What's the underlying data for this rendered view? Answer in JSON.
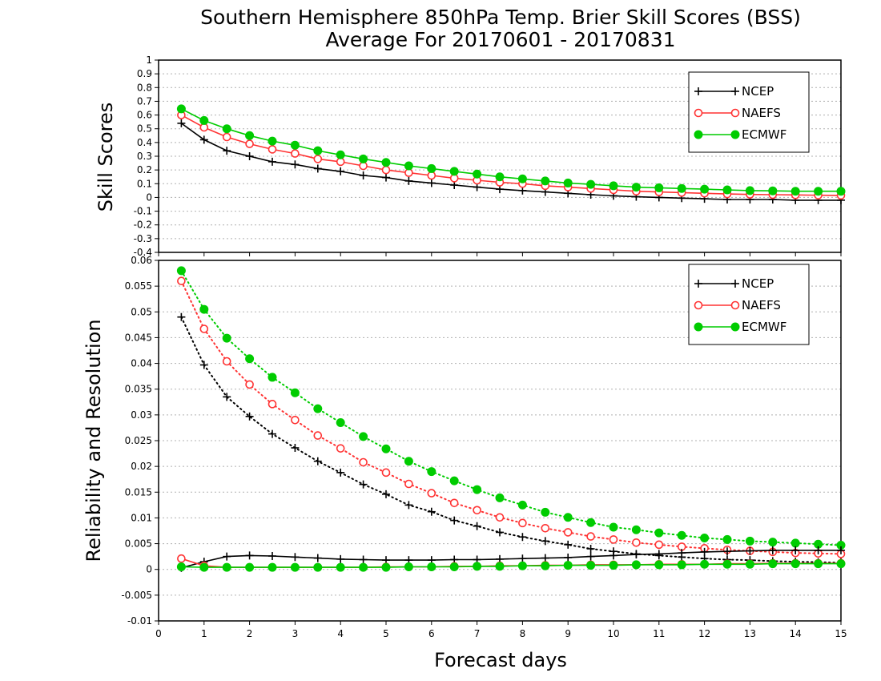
{
  "title_line1": "Southern Hemisphere 850hPa Temp. Brier Skill Scores (BSS)",
  "title_line2": "Average For 20170601 - 20170831",
  "xlabel": "Forecast days",
  "chart_data": [
    {
      "type": "line",
      "ylabel": "Skill Scores",
      "ylim": [
        -0.4,
        1
      ],
      "xlim": [
        0,
        15
      ],
      "yticks": [
        "-0.4",
        "-0.3",
        "-0.2",
        "-0.1",
        "0",
        "0.1",
        "0.2",
        "0.3",
        "0.4",
        "0.5",
        "0.6",
        "0.7",
        "0.8",
        "0.9",
        "1"
      ],
      "xticks": [
        "0",
        "1",
        "2",
        "3",
        "4",
        "5",
        "6",
        "7",
        "8",
        "9",
        "10",
        "11",
        "12",
        "13",
        "14",
        "15"
      ],
      "grid": true,
      "legend_position": "top-right",
      "x": [
        0.5,
        1,
        1.5,
        2,
        2.5,
        3,
        3.5,
        4,
        4.5,
        5,
        5.5,
        6,
        6.5,
        7,
        7.5,
        8,
        8.5,
        9,
        9.5,
        10,
        10.5,
        11,
        11.5,
        12,
        12.5,
        13,
        13.5,
        14,
        14.5,
        15
      ],
      "series": [
        {
          "name": "NCEP",
          "color": "#000000",
          "marker": "plus",
          "style": "solid",
          "values": [
            0.54,
            0.42,
            0.34,
            0.3,
            0.26,
            0.24,
            0.21,
            0.19,
            0.16,
            0.145,
            0.12,
            0.105,
            0.09,
            0.075,
            0.06,
            0.05,
            0.04,
            0.03,
            0.02,
            0.012,
            0.005,
            0.0,
            -0.005,
            -0.01,
            -0.015,
            -0.015,
            -0.015,
            -0.02,
            -0.02,
            -0.02
          ]
        },
        {
          "name": "NAEFS",
          "color": "#ff3333",
          "marker": "circle-open",
          "style": "solid",
          "values": [
            0.6,
            0.51,
            0.44,
            0.39,
            0.35,
            0.32,
            0.28,
            0.26,
            0.23,
            0.2,
            0.18,
            0.16,
            0.14,
            0.125,
            0.11,
            0.1,
            0.085,
            0.075,
            0.065,
            0.055,
            0.045,
            0.04,
            0.035,
            0.03,
            0.025,
            0.022,
            0.02,
            0.018,
            0.016,
            0.015
          ]
        },
        {
          "name": "ECMWF",
          "color": "#00cc00",
          "marker": "circle-filled",
          "style": "solid",
          "values": [
            0.645,
            0.56,
            0.5,
            0.45,
            0.41,
            0.38,
            0.34,
            0.31,
            0.28,
            0.255,
            0.23,
            0.21,
            0.19,
            0.17,
            0.15,
            0.135,
            0.12,
            0.105,
            0.095,
            0.085,
            0.075,
            0.07,
            0.065,
            0.06,
            0.055,
            0.05,
            0.048,
            0.045,
            0.045,
            0.045
          ]
        }
      ]
    },
    {
      "type": "line",
      "ylabel": "Reliability and Resolution",
      "ylim": [
        -0.01,
        0.06
      ],
      "xlim": [
        0,
        15
      ],
      "yticks": [
        "-0.01",
        "-0.005",
        "0",
        "0.005",
        "0.01",
        "0.015",
        "0.02",
        "0.025",
        "0.03",
        "0.035",
        "0.04",
        "0.045",
        "0.05",
        "0.055",
        "0.06"
      ],
      "xticks": [
        "0",
        "1",
        "2",
        "3",
        "4",
        "5",
        "6",
        "7",
        "8",
        "9",
        "10",
        "11",
        "12",
        "13",
        "14",
        "15"
      ],
      "grid": true,
      "legend_position": "top-right",
      "x": [
        0.5,
        1,
        1.5,
        2,
        2.5,
        3,
        3.5,
        4,
        4.5,
        5,
        5.5,
        6,
        6.5,
        7,
        7.5,
        8,
        8.5,
        9,
        9.5,
        10,
        10.5,
        11,
        11.5,
        12,
        12.5,
        13,
        13.5,
        14,
        14.5,
        15
      ],
      "series": [
        {
          "name": "NCEP",
          "color": "#000000",
          "marker": "plus",
          "style": "dotted",
          "kind": "resolution",
          "values": [
            0.049,
            0.0397,
            0.0335,
            0.0297,
            0.0263,
            0.0236,
            0.021,
            0.0188,
            0.0165,
            0.0146,
            0.0125,
            0.0112,
            0.0095,
            0.0084,
            0.0072,
            0.0063,
            0.0055,
            0.0048,
            0.004,
            0.0035,
            0.003,
            0.0027,
            0.0024,
            0.0021,
            0.0019,
            0.0018,
            0.0016,
            0.0015,
            0.0014,
            0.0013
          ]
        },
        {
          "name": "NAEFS",
          "color": "#ff3333",
          "marker": "circle-open",
          "style": "dotted",
          "kind": "resolution",
          "values": [
            0.056,
            0.0467,
            0.0404,
            0.0359,
            0.0321,
            0.029,
            0.026,
            0.0235,
            0.0208,
            0.0188,
            0.0166,
            0.0148,
            0.0129,
            0.0115,
            0.0101,
            0.009,
            0.008,
            0.0072,
            0.0064,
            0.0058,
            0.0052,
            0.0048,
            0.0044,
            0.0041,
            0.0038,
            0.0036,
            0.0034,
            0.0032,
            0.0031,
            0.003
          ]
        },
        {
          "name": "ECMWF",
          "color": "#00cc00",
          "marker": "circle-filled",
          "style": "dotted",
          "kind": "resolution",
          "values": [
            0.058,
            0.0505,
            0.0449,
            0.0409,
            0.0373,
            0.0343,
            0.0312,
            0.0285,
            0.0258,
            0.0234,
            0.021,
            0.019,
            0.0172,
            0.0155,
            0.0139,
            0.0125,
            0.0111,
            0.0101,
            0.0091,
            0.0082,
            0.0077,
            0.0071,
            0.0066,
            0.0061,
            0.0058,
            0.0055,
            0.0053,
            0.0051,
            0.0049,
            0.0047
          ]
        },
        {
          "name": "NCEP",
          "color": "#000000",
          "marker": "plus",
          "style": "solid",
          "kind": "reliability",
          "values": [
            0.0003,
            0.0015,
            0.0025,
            0.0027,
            0.0026,
            0.0024,
            0.0022,
            0.002,
            0.0019,
            0.0018,
            0.0018,
            0.0018,
            0.0019,
            0.0019,
            0.002,
            0.0021,
            0.0022,
            0.0023,
            0.0025,
            0.0027,
            0.0029,
            0.003,
            0.0032,
            0.0034,
            0.0035,
            0.0036,
            0.0037,
            0.0037,
            0.0037,
            0.0037
          ]
        },
        {
          "name": "NAEFS",
          "color": "#ff3333",
          "marker": "circle-open",
          "style": "solid",
          "kind": "reliability",
          "values": [
            0.0021,
            0.0007,
            0.0004,
            0.0004,
            0.0004,
            0.0004,
            0.0004,
            0.0004,
            0.0004,
            0.0005,
            0.0005,
            0.0005,
            0.0006,
            0.0006,
            0.0007,
            0.0007,
            0.0008,
            0.0008,
            0.0009,
            0.0009,
            0.0009,
            0.001,
            0.001,
            0.001,
            0.0011,
            0.0011,
            0.0012,
            0.0012,
            0.0012,
            0.0012
          ]
        },
        {
          "name": "ECMWF",
          "color": "#00cc00",
          "marker": "circle-filled",
          "style": "solid",
          "kind": "reliability",
          "values": [
            0.0005,
            0.0004,
            0.0004,
            0.0004,
            0.0004,
            0.0004,
            0.0004,
            0.0004,
            0.0004,
            0.0004,
            0.0005,
            0.0005,
            0.0005,
            0.0006,
            0.0006,
            0.0007,
            0.0007,
            0.0008,
            0.0008,
            0.0008,
            0.0009,
            0.0009,
            0.0009,
            0.001,
            0.001,
            0.001,
            0.0011,
            0.0011,
            0.0011,
            0.0011
          ]
        }
      ]
    }
  ]
}
